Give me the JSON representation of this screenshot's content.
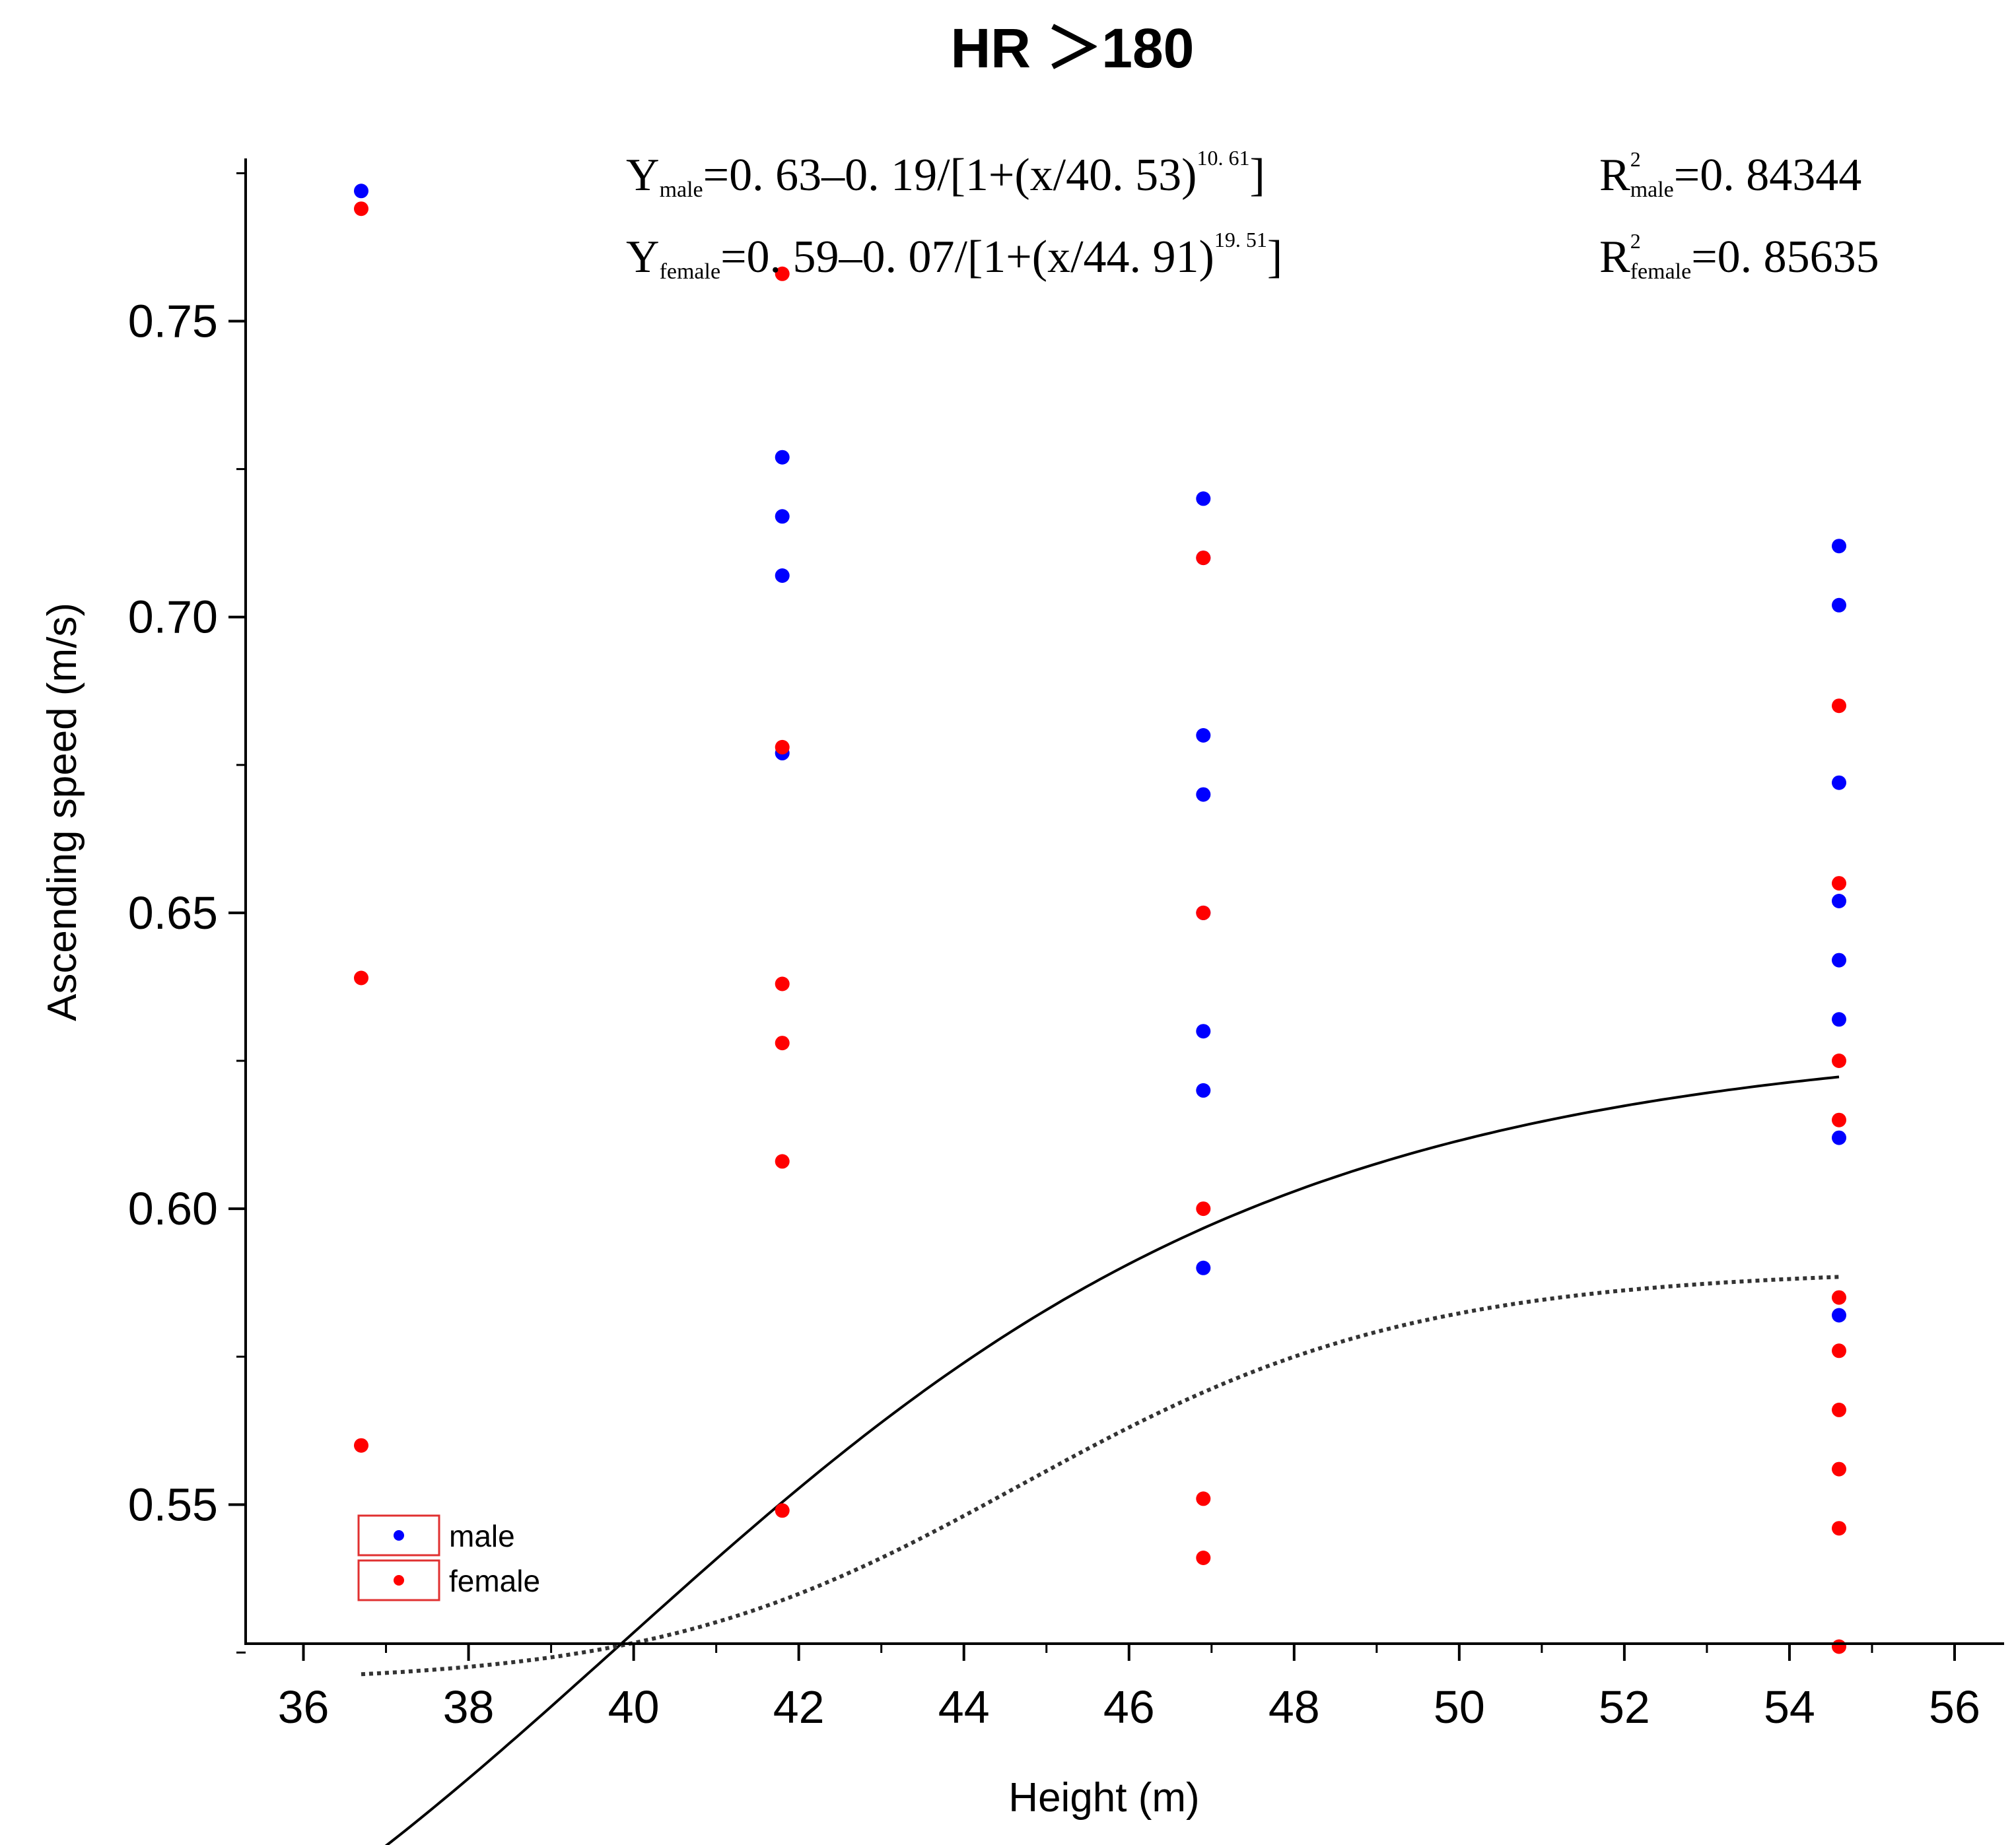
{
  "chart_data": {
    "type": "scatter",
    "title": "HR ＞180",
    "xlabel": "Height (m)",
    "ylabel": "Ascending speed (m/s)",
    "xlim": [
      35.3,
      56.6
    ],
    "ylim": [
      0.5265,
      0.7775
    ],
    "x_ticks": [
      36,
      38,
      40,
      42,
      44,
      46,
      48,
      50,
      52,
      54,
      56
    ],
    "y_ticks": [
      0.55,
      0.6,
      0.65,
      0.7,
      0.75
    ],
    "y_tick_labels": [
      "0.55",
      "0.60",
      "0.65",
      "0.70",
      "0.75"
    ],
    "grid": false,
    "legend_position": "bottom-left",
    "series": [
      {
        "name": "male",
        "color": "#0000ff",
        "points": [
          [
            36.7,
            0.772
          ],
          [
            41.8,
            0.727
          ],
          [
            41.8,
            0.717
          ],
          [
            41.8,
            0.707
          ],
          [
            41.8,
            0.677
          ],
          [
            46.9,
            0.72
          ],
          [
            46.9,
            0.71
          ],
          [
            46.9,
            0.68
          ],
          [
            46.9,
            0.67
          ],
          [
            46.9,
            0.65
          ],
          [
            46.9,
            0.63
          ],
          [
            46.9,
            0.62
          ],
          [
            46.9,
            0.59
          ],
          [
            54.6,
            0.712
          ],
          [
            54.6,
            0.702
          ],
          [
            54.6,
            0.672
          ],
          [
            54.6,
            0.652
          ],
          [
            54.6,
            0.642
          ],
          [
            54.6,
            0.632
          ],
          [
            54.6,
            0.612
          ],
          [
            54.6,
            0.582
          ]
        ]
      },
      {
        "name": "female",
        "color": "#ff0000",
        "points": [
          [
            36.7,
            0.769
          ],
          [
            36.7,
            0.639
          ],
          [
            36.7,
            0.56
          ],
          [
            41.8,
            0.758
          ],
          [
            41.8,
            0.678
          ],
          [
            41.8,
            0.638
          ],
          [
            41.8,
            0.628
          ],
          [
            41.8,
            0.608
          ],
          [
            41.8,
            0.549
          ],
          [
            46.9,
            0.71
          ],
          [
            46.9,
            0.65
          ],
          [
            46.9,
            0.6
          ],
          [
            46.9,
            0.551
          ],
          [
            46.9,
            0.541
          ],
          [
            54.6,
            0.685
          ],
          [
            54.6,
            0.655
          ],
          [
            54.6,
            0.625
          ],
          [
            54.6,
            0.615
          ],
          [
            54.6,
            0.585
          ],
          [
            54.6,
            0.576
          ],
          [
            54.6,
            0.566
          ],
          [
            54.6,
            0.556
          ],
          [
            54.6,
            0.546
          ],
          [
            54.6,
            0.526
          ]
        ]
      }
    ],
    "fits": [
      {
        "name": "male fit",
        "style": "solid",
        "color": "#000000",
        "a": 0.63,
        "b": 0.19,
        "c": 40.53,
        "n": 10.61,
        "x_range": [
          36.7,
          54.6
        ]
      },
      {
        "name": "female fit",
        "style": "dotted",
        "color": "#333333",
        "a": 0.59,
        "b": 0.07,
        "c": 44.91,
        "n": 19.51,
        "x_range": [
          36.7,
          54.6
        ]
      }
    ],
    "annotations": {
      "eq_male": {
        "y_sym": "Y",
        "y_sub": "male",
        "body": "=0. 63‒0. 19/[1+(x/40. 53)",
        "sup": "10. 61",
        "close": "]"
      },
      "eq_female": {
        "y_sym": "Y",
        "y_sub": "female",
        "body": "=0. 59‒0. 07/[1+(x/44. 91)",
        "sup": "19. 51",
        "close": "]"
      },
      "r2_male": {
        "r_sym": "R",
        "sup": "2",
        "sub": "male",
        "value": "=0. 84344"
      },
      "r2_female": {
        "r_sym": "R",
        "sup": "2",
        "sub": "female",
        "value": "=0. 85635"
      }
    }
  }
}
